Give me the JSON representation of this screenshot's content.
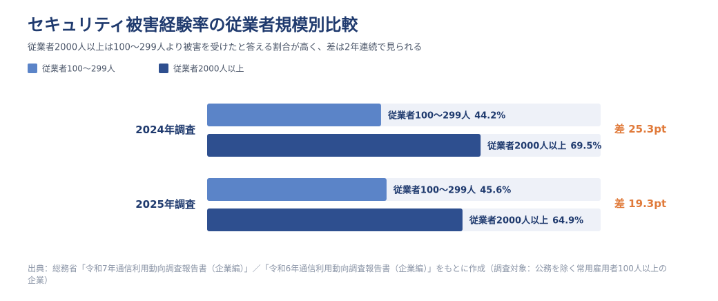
{
  "chart_data": {
    "type": "hbar",
    "title": "セキュリティ被害経験率の従業者規模別比較",
    "subtitle": "従業者2000人以上は100〜299人より被害を受けたと答える割合が高く、差は2年連続で見られる",
    "categories": [
      "2024年調査",
      "2025年調査"
    ],
    "series": [
      {
        "name": "従業者100〜299人",
        "color": "#5b84c8",
        "values": [
          44.2,
          45.6
        ],
        "value_labels": [
          "44.2%",
          "45.6%"
        ]
      },
      {
        "name": "従業者2000人以上",
        "color": "#2e4f8f",
        "values": [
          69.5,
          64.9
        ],
        "value_labels": [
          "69.5%",
          "64.9%"
        ]
      }
    ],
    "differences": [
      "差 25.3pt",
      "差 19.3pt"
    ],
    "difference_color": "#e07a3a",
    "track_color": "#eef1f8",
    "xlim": [
      0,
      100
    ],
    "legend": "top-left",
    "source": "出典：総務省「令和7年通信利用動向調査報告書（企業編）」／「令和6年通信利用動向調査報告書（企業編）」をもとに作成（調査対象：公務を除く常用雇用者100人以上の企業）"
  }
}
